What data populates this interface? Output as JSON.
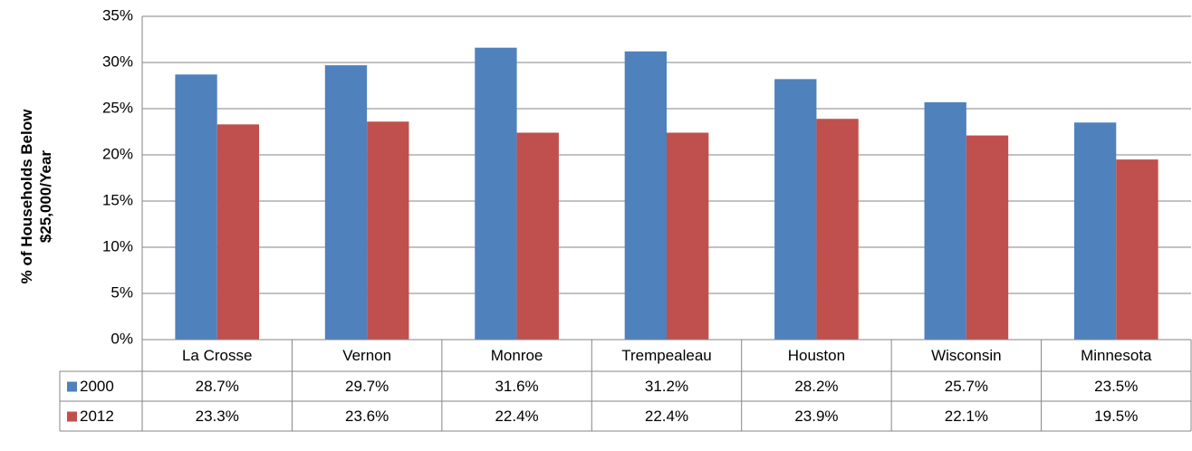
{
  "chart_data": {
    "type": "bar",
    "ylabel": "% of Households Below $25,000/Year",
    "categories": [
      "La Crosse",
      "Vernon",
      "Monroe",
      "Trempealeau",
      "Houston",
      "Wisconsin",
      "Minnesota"
    ],
    "series": [
      {
        "name": "2000",
        "color": "#4f81bd",
        "values": [
          28.7,
          29.7,
          31.6,
          31.2,
          28.2,
          25.7,
          23.5
        ],
        "value_labels": [
          "28.7%",
          "29.7%",
          "31.6%",
          "31.2%",
          "28.2%",
          "25.7%",
          "23.5%"
        ]
      },
      {
        "name": "2012",
        "color": "#c0504d",
        "values": [
          23.3,
          23.6,
          22.4,
          22.4,
          23.9,
          22.1,
          19.5
        ],
        "value_labels": [
          "23.3%",
          "23.6%",
          "22.4%",
          "22.4%",
          "23.9%",
          "22.1%",
          "19.5%"
        ]
      }
    ],
    "ylim": [
      0,
      35
    ],
    "yticks": [
      {
        "value": 0,
        "label": "0%"
      },
      {
        "value": 5,
        "label": "5%"
      },
      {
        "value": 10,
        "label": "10%"
      },
      {
        "value": 15,
        "label": "15%"
      },
      {
        "value": 20,
        "label": "20%"
      },
      {
        "value": 25,
        "label": "25%"
      },
      {
        "value": 30,
        "label": "30%"
      },
      {
        "value": 35,
        "label": "35%"
      }
    ],
    "grid": true
  }
}
